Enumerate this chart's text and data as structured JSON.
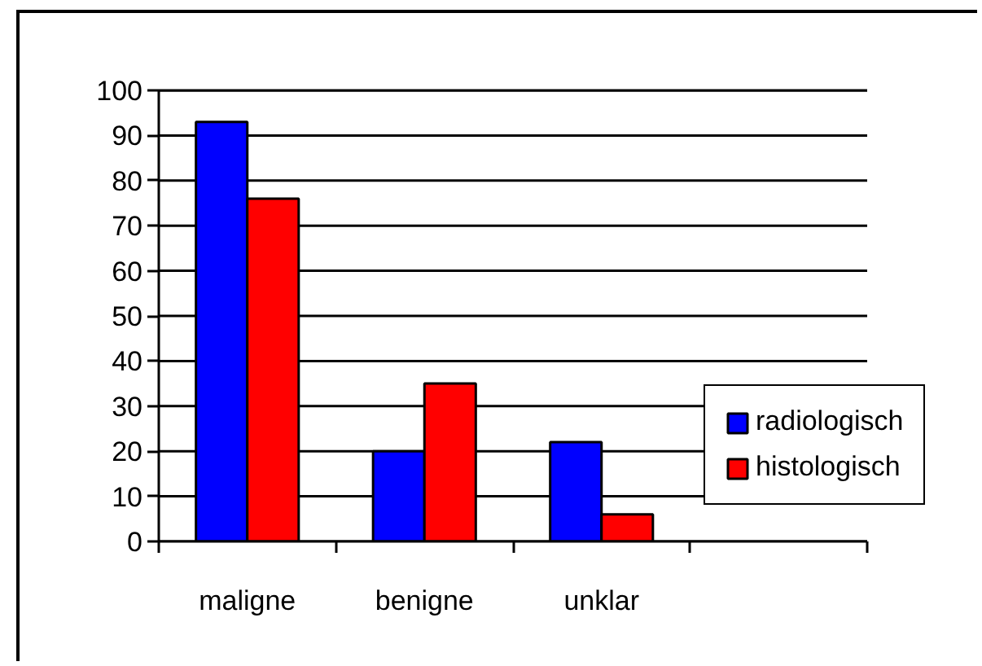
{
  "chart_data": {
    "type": "bar",
    "categories": [
      "maligne",
      "benigne",
      "unklar",
      null
    ],
    "series": [
      {
        "name": "radiologisch",
        "color": "#0000ff",
        "values": [
          93,
          20,
          22,
          null
        ]
      },
      {
        "name": "histologisch",
        "color": "#ff0000",
        "values": [
          76,
          35,
          6,
          null
        ]
      }
    ],
    "ylim": [
      0,
      100
    ],
    "yticks": [
      0,
      10,
      20,
      30,
      40,
      50,
      60,
      70,
      80,
      90,
      100
    ],
    "grid": "y",
    "legend": "right"
  }
}
